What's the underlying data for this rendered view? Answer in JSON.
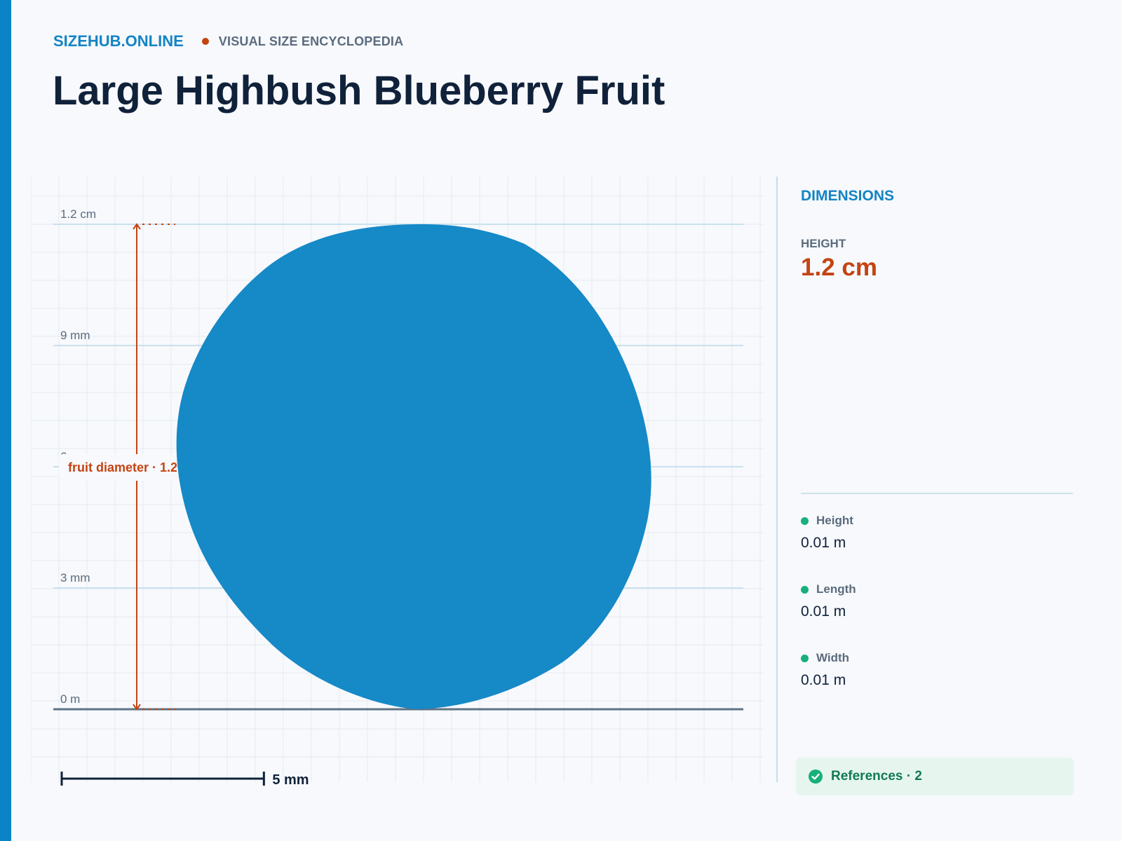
{
  "colors": {
    "accent": "#0a84c6",
    "brand": "#1384c4",
    "highlight": "#c44412",
    "object_fill": "#1689c7",
    "positive": "#17b07d"
  },
  "header": {
    "site": "SIZEHUB.ONLINE",
    "tagline": "VISUAL SIZE ENCYCLOPEDIA",
    "title": "Large Highbush Blueberry Fruit"
  },
  "scale": {
    "gridlines": [
      {
        "label": "1.2 cm",
        "value_mm": 12
      },
      {
        "label": "9 mm",
        "value_mm": 9
      },
      {
        "label": "6 mm",
        "value_mm": 6
      },
      {
        "label": "3 mm",
        "value_mm": 3
      },
      {
        "label": "0 m",
        "value_mm": 0
      }
    ],
    "measure_label": "fruit diameter · 1.2 cm",
    "scale_bar_label": "5 mm",
    "scale_bar_mm": 5
  },
  "panel": {
    "heading": "DIMENSIONS",
    "primary_label": "HEIGHT",
    "primary_value": "1.2 cm",
    "items": [
      {
        "name": "Height",
        "value": "0.01 m",
        "icon": "dot-icon"
      },
      {
        "name": "Length",
        "value": "0.01 m",
        "icon": "dot-icon"
      },
      {
        "name": "Width",
        "value": "0.01 m",
        "icon": "dot-icon"
      }
    ],
    "references_label": "References · 2",
    "references_icon": "check-circle-icon"
  }
}
